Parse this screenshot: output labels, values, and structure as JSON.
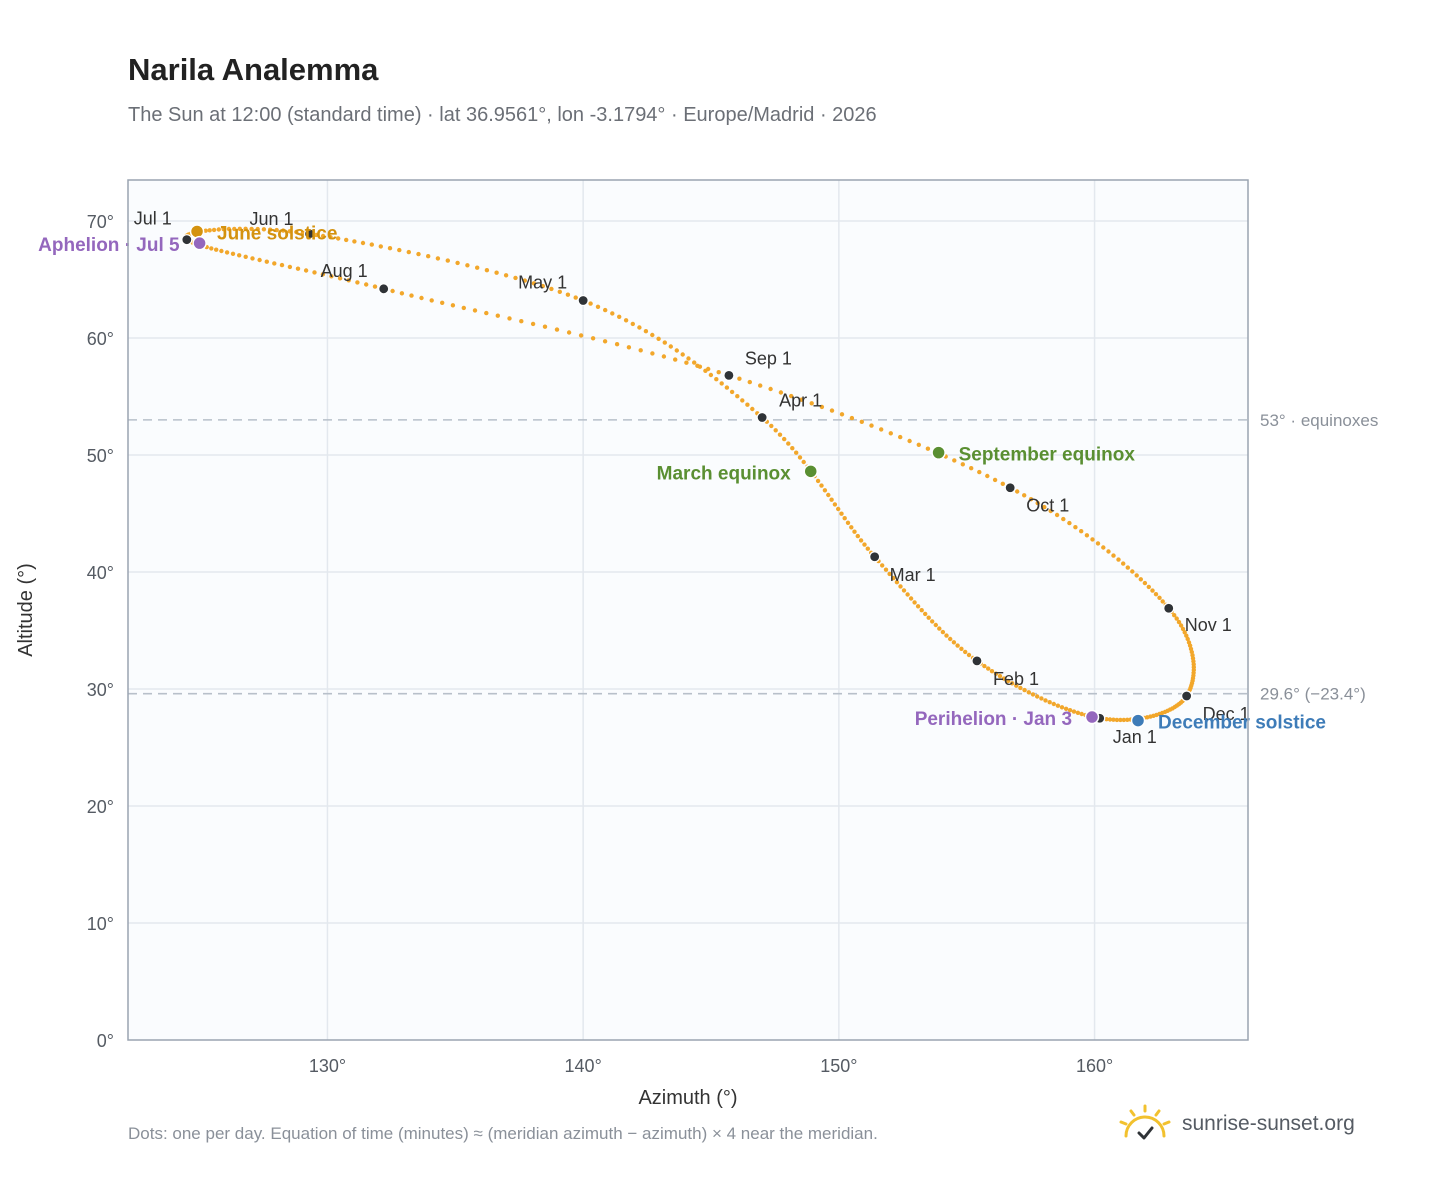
{
  "header": {
    "title": "Narila Analemma",
    "subtitle": "The Sun at 12:00 (standard time) · lat 36.9561°, lon -3.1794° · Europe/Madrid · 2026"
  },
  "footer": {
    "note": "Dots: one per day. Equation of time (minutes) ≈ (meridian azimuth − azimuth) × 4 near the meridian.",
    "brand": "sunrise-sunset.org"
  },
  "colors": {
    "path": "#f2a72b",
    "month_marker": "#2f3337",
    "solstice_june": "#d4920f",
    "solstice_december": "#3e7cb8",
    "equinox": "#5a8f32",
    "apsis": "#9467bd",
    "reference_line": "#b8c0ca",
    "plot_background": "#fafcfe",
    "grid": "#e3e8ee",
    "frame": "#9aa4b1"
  },
  "chart_data": {
    "type": "scatter",
    "xlabel": "Azimuth (°)",
    "ylabel": "Altitude (°)",
    "xlim": [
      122.2,
      166
    ],
    "ylim": [
      0,
      73.5
    ],
    "x_ticks": [
      {
        "value": 130,
        "label": "130°"
      },
      {
        "value": 140,
        "label": "140°"
      },
      {
        "value": 150,
        "label": "150°"
      },
      {
        "value": 160,
        "label": "160°"
      }
    ],
    "y_ticks": [
      {
        "value": 0,
        "label": "0°"
      },
      {
        "value": 10,
        "label": "10°"
      },
      {
        "value": 20,
        "label": "20°"
      },
      {
        "value": 30,
        "label": "30°"
      },
      {
        "value": 40,
        "label": "40°"
      },
      {
        "value": 50,
        "label": "50°"
      },
      {
        "value": 60,
        "label": "60°"
      },
      {
        "value": 70,
        "label": "70°"
      }
    ],
    "grid": true,
    "reference_lines": [
      {
        "y": 53.0,
        "label": "53° · equinoxes"
      },
      {
        "y": 29.6,
        "label": "29.6° (−23.4°)"
      }
    ],
    "path_points": [
      {
        "date": "Jan 1",
        "x": 160.2,
        "y": 27.5
      },
      {
        "date": "Feb 1",
        "x": 155.4,
        "y": 32.4
      },
      {
        "date": "Mar 1",
        "x": 151.4,
        "y": 41.3
      },
      {
        "date": "Apr 1",
        "x": 147.0,
        "y": 53.2
      },
      {
        "date": "May 1",
        "x": 140.0,
        "y": 63.2
      },
      {
        "date": "Jun 1",
        "x": 129.3,
        "y": 68.9
      },
      {
        "date": "Jul 1",
        "x": 124.5,
        "y": 68.4
      },
      {
        "date": "Aug 1",
        "x": 132.2,
        "y": 64.2
      },
      {
        "date": "Sep 1",
        "x": 145.7,
        "y": 56.8
      },
      {
        "date": "Oct 1",
        "x": 156.7,
        "y": 47.2
      },
      {
        "date": "Nov 1",
        "x": 162.9,
        "y": 36.9
      },
      {
        "date": "Dec 1",
        "x": 163.6,
        "y": 29.4
      }
    ],
    "month_markers": [
      {
        "label": "Jan 1",
        "x": 160.2,
        "y": 27.5
      },
      {
        "label": "Feb 1",
        "x": 155.4,
        "y": 32.4
      },
      {
        "label": "Mar 1",
        "x": 151.4,
        "y": 41.3
      },
      {
        "label": "Apr 1",
        "x": 147.0,
        "y": 53.2
      },
      {
        "label": "May 1",
        "x": 140.0,
        "y": 63.2
      },
      {
        "label": "Jun 1",
        "x": 129.3,
        "y": 68.9
      },
      {
        "label": "Jul 1",
        "x": 124.5,
        "y": 68.4
      },
      {
        "label": "Aug 1",
        "x": 132.2,
        "y": 64.2
      },
      {
        "label": "Sep 1",
        "x": 145.7,
        "y": 56.8
      },
      {
        "label": "Oct 1",
        "x": 156.7,
        "y": 47.2
      },
      {
        "label": "Nov 1",
        "x": 162.9,
        "y": 36.9
      },
      {
        "label": "Dec 1",
        "x": 163.6,
        "y": 29.4
      }
    ],
    "key_points": [
      {
        "label": "June solstice",
        "x": 124.9,
        "y": 69.1,
        "color": "#d4920f"
      },
      {
        "label": "December solstice",
        "x": 161.7,
        "y": 27.3,
        "color": "#3e7cb8"
      },
      {
        "label": "March equinox",
        "x": 148.9,
        "y": 48.6,
        "color": "#5a8f32"
      },
      {
        "label": "September equinox",
        "x": 153.9,
        "y": 50.2,
        "color": "#5a8f32"
      },
      {
        "label": "Aphelion · Jul 5",
        "x": 125.0,
        "y": 68.1,
        "color": "#9467bd"
      },
      {
        "label": "Perihelion · Jan 3",
        "x": 159.9,
        "y": 27.6,
        "color": "#9467bd"
      }
    ]
  }
}
